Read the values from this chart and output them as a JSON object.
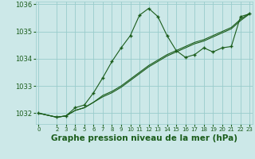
{
  "bg_color": "#cce8e8",
  "grid_color": "#99cccc",
  "line_color": "#1a5c1a",
  "marker_color": "#1a5c1a",
  "xlabel": "Graphe pression niveau de la mer (hPa)",
  "xlabel_fontsize": 7.5,
  "ylim": [
    1031.6,
    1036.1
  ],
  "xlim": [
    -0.3,
    23.3
  ],
  "yticks": [
    1032,
    1033,
    1034,
    1035,
    1036
  ],
  "xticks": [
    0,
    2,
    3,
    4,
    5,
    6,
    7,
    8,
    9,
    10,
    11,
    12,
    13,
    14,
    15,
    16,
    17,
    18,
    19,
    20,
    21,
    22,
    23
  ],
  "series1_x": [
    0,
    2,
    3,
    4,
    5,
    6,
    7,
    8,
    9,
    10,
    11,
    12,
    13,
    14,
    15,
    16,
    17,
    18,
    19,
    20,
    21,
    22,
    23
  ],
  "series1_y": [
    1032.0,
    1031.85,
    1031.9,
    1032.2,
    1032.3,
    1032.75,
    1033.3,
    1033.9,
    1034.4,
    1034.85,
    1035.6,
    1035.85,
    1035.55,
    1034.85,
    1034.3,
    1034.05,
    1034.15,
    1034.4,
    1034.25,
    1034.4,
    1034.45,
    1035.55,
    1035.65
  ],
  "series2_x": [
    0,
    2,
    3,
    4,
    5,
    6,
    7,
    8,
    9,
    10,
    11,
    12,
    13,
    14,
    15,
    16,
    17,
    18,
    19,
    20,
    21,
    22,
    23
  ],
  "series2_y": [
    1032.0,
    1031.85,
    1031.9,
    1032.1,
    1032.2,
    1032.4,
    1032.6,
    1032.75,
    1032.95,
    1033.2,
    1033.45,
    1033.7,
    1033.9,
    1034.1,
    1034.25,
    1034.4,
    1034.55,
    1034.65,
    1034.8,
    1034.95,
    1035.1,
    1035.4,
    1035.65
  ],
  "series3_x": [
    0,
    2,
    3,
    4,
    5,
    6,
    7,
    8,
    9,
    10,
    11,
    12,
    13,
    14,
    15,
    16,
    17,
    18,
    19,
    20,
    21,
    22,
    23
  ],
  "series3_y": [
    1032.0,
    1031.85,
    1031.9,
    1032.1,
    1032.2,
    1032.4,
    1032.65,
    1032.8,
    1033.0,
    1033.25,
    1033.5,
    1033.75,
    1033.95,
    1034.15,
    1034.3,
    1034.45,
    1034.6,
    1034.7,
    1034.85,
    1035.0,
    1035.15,
    1035.45,
    1035.68
  ]
}
